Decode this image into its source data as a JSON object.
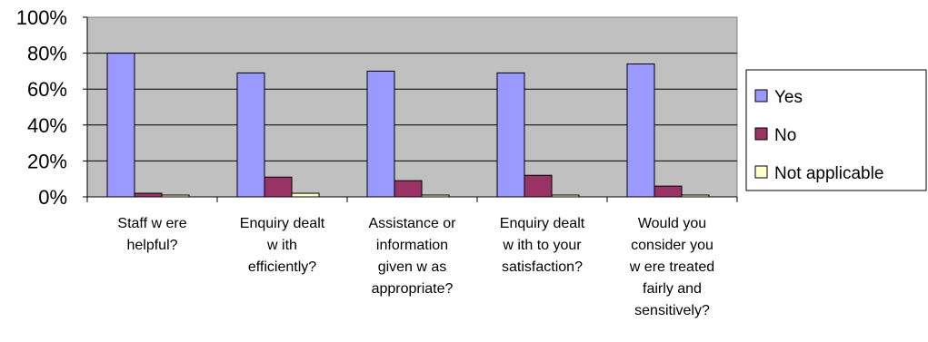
{
  "chart_data": {
    "type": "bar",
    "categories": [
      [
        "Staff w ere",
        "helpful?"
      ],
      [
        "Enquiry dealt",
        "w ith",
        "efficiently?"
      ],
      [
        "Assistance or",
        "information",
        "given w as",
        "appropriate?"
      ],
      [
        "Enquiry dealt",
        "w ith to your",
        "satisfaction?"
      ],
      [
        "Would you",
        "consider you",
        "w ere treated",
        "fairly and",
        "sensitively?"
      ]
    ],
    "series": [
      {
        "name": "Yes",
        "color": "#9999ff",
        "values": [
          80,
          69,
          70,
          69,
          74
        ]
      },
      {
        "name": "No",
        "color": "#993366",
        "values": [
          2,
          11,
          9,
          12,
          6
        ]
      },
      {
        "name": "Not applicable",
        "color": "#ffffcc",
        "values": [
          1,
          2,
          1,
          1,
          1
        ]
      }
    ],
    "ylim": [
      0,
      100
    ],
    "yticks": [
      "0%",
      "20%",
      "40%",
      "60%",
      "80%",
      "100%"
    ],
    "plot_background": "#c0c0c0",
    "grid": true,
    "legend": "right"
  }
}
